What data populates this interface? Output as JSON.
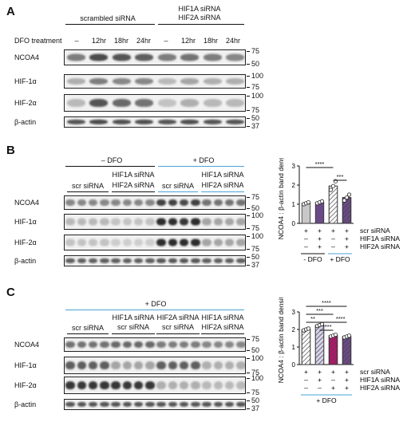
{
  "panelA": {
    "letter": "A",
    "group1": "scrambled siRNA",
    "group2_line1": "HIF1A siRNA",
    "group2_line2": "HIF2A siRNA",
    "treatment_label": "DFO treatment",
    "timepoints": [
      "–",
      "12hr",
      "18hr",
      "24hr",
      "–",
      "12hr",
      "18hr",
      "24hr"
    ],
    "rows": [
      {
        "label": "NCOA4",
        "mw": [
          "75",
          "50"
        ]
      },
      {
        "label": "HIF-1α",
        "mw": [
          "100",
          "75"
        ]
      },
      {
        "label": "HIF-2α",
        "mw": [
          "100",
          "75"
        ]
      },
      {
        "label": "β-actin",
        "mw": [
          "50",
          "37"
        ]
      }
    ]
  },
  "panelB": {
    "letter": "B",
    "minus_dfo": "– DFO",
    "plus_dfo": "+ DFO",
    "scr": "scr siRNA",
    "hif1a": "HIF1A siRNA",
    "hif2a": "HIF2A siRNA",
    "rows": [
      {
        "label": "NCOA4",
        "mw": [
          "75",
          "50"
        ]
      },
      {
        "label": "HIF-1α",
        "mw": [
          "100",
          "75"
        ]
      },
      {
        "label": "HIF-2α",
        "mw": [
          "100",
          "75"
        ]
      },
      {
        "label": "β-actin",
        "mw": [
          "50",
          "37"
        ]
      }
    ]
  },
  "panelC": {
    "letter": "C",
    "plus_dfo": "+ DFO",
    "scr": "scr siRNA",
    "hif1a": "HIF1A siRNA",
    "hif2a": "HIF2A siRNA",
    "rows": [
      {
        "label": "NCOA4",
        "mw": [
          "75",
          "50"
        ]
      },
      {
        "label": "HIF-1α",
        "mw": [
          "100",
          "75"
        ]
      },
      {
        "label": "HIF-2α",
        "mw": [
          "100",
          "75"
        ]
      },
      {
        "label": "β-actin",
        "mw": [
          "50",
          "37"
        ]
      }
    ]
  },
  "chart_data": [
    {
      "type": "bar",
      "ylabel": "NCOA4 : β-actin band density",
      "ylim": [
        0,
        3
      ],
      "yticks": [
        "0",
        "1",
        "2",
        "3"
      ],
      "bars": [
        {
          "mean": 1.05,
          "fill": "#c8c8c8",
          "hatch": false,
          "points": [
            1.0,
            1.05,
            1.1
          ]
        },
        {
          "mean": 1.1,
          "fill": "#6a4a86",
          "hatch": false,
          "points": [
            1.05,
            1.1,
            1.15
          ]
        },
        {
          "mean": 1.95,
          "fill": "#ffffff",
          "hatch": true,
          "points": [
            1.75,
            1.95,
            2.2
          ]
        },
        {
          "mean": 1.35,
          "fill": "#6a4a86",
          "hatch": true,
          "points": [
            1.2,
            1.35,
            1.5
          ]
        }
      ],
      "signs": [
        [
          "+",
          "–",
          "–"
        ],
        [
          "+",
          "+",
          "+"
        ],
        [
          "+",
          "–",
          "–"
        ],
        [
          "+",
          "+",
          "+"
        ]
      ],
      "row_labels": [
        "scr siRNA",
        "HIF1A siRNA",
        "HIF2A siRNA"
      ],
      "group_labels": [
        "- DFO",
        "+ DFO"
      ],
      "significance": [
        "****",
        "***"
      ]
    },
    {
      "type": "bar",
      "ylabel": "NCOA4 : β-actin band density",
      "ylim": [
        0,
        3
      ],
      "yticks": [
        "0",
        "1",
        "2",
        "3"
      ],
      "bars": [
        {
          "mean": 2.0,
          "fill": "#ffffff",
          "hatch": true,
          "points": [
            1.95,
            2.0,
            2.05
          ]
        },
        {
          "mean": 2.25,
          "fill": "#d7d3ea",
          "hatch": true,
          "points": [
            2.2,
            2.25,
            2.3
          ]
        },
        {
          "mean": 1.65,
          "fill": "#b0186a",
          "hatch": true,
          "points": [
            1.6,
            1.65,
            1.7
          ]
        },
        {
          "mean": 1.6,
          "fill": "#6a4a86",
          "hatch": true,
          "points": [
            1.55,
            1.6,
            1.65
          ]
        }
      ],
      "signs": [
        [
          "+",
          "–",
          "–"
        ],
        [
          "+",
          "+",
          "–"
        ],
        [
          "+",
          "–",
          "+"
        ],
        [
          "+",
          "+",
          "+"
        ]
      ],
      "row_labels": [
        "scr siRNA",
        "HIF1A siRNA",
        "HIF2A siRNA"
      ],
      "group_labels": [
        "+ DFO"
      ],
      "significance": [
        "****",
        "***",
        "**",
        "****",
        "****"
      ]
    }
  ]
}
